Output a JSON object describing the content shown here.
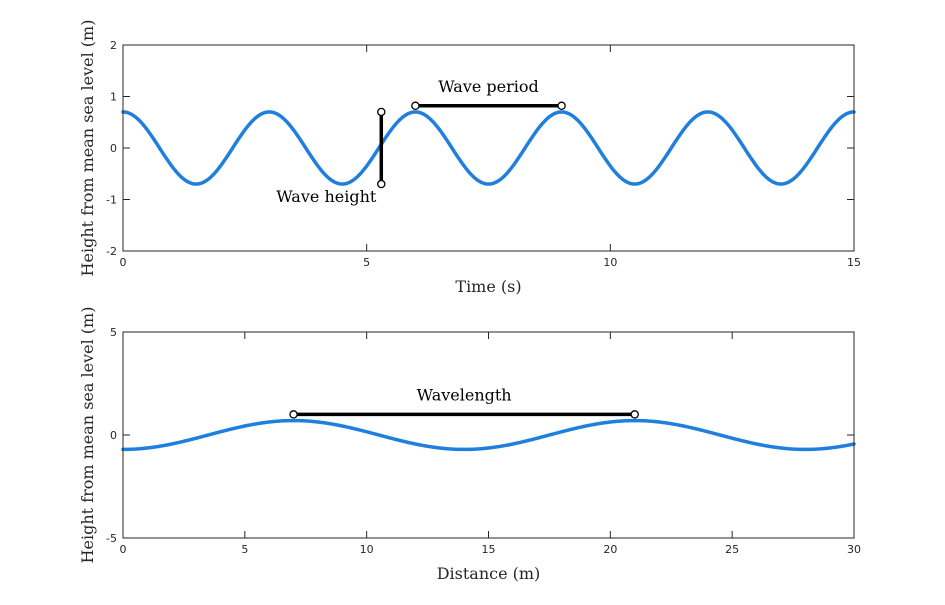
{
  "chart_data": [
    {
      "type": "line",
      "title": "",
      "xlabel": "Time (s)",
      "ylabel": "Height from mean sea level (m)",
      "xlim": [
        0,
        15
      ],
      "ylim": [
        -2,
        2
      ],
      "xticks": [
        0,
        5,
        10,
        15
      ],
      "yticks": [
        -2,
        -1,
        0,
        1,
        2
      ],
      "grid": false,
      "curve": {
        "function": "cosine",
        "amplitude": 0.7,
        "period": 3,
        "phase_shift": 0,
        "color": "#1f7fde"
      },
      "annotations": [
        {
          "label": "Wave height",
          "x1": 5.3,
          "y1": -0.7,
          "x2": 5.3,
          "y2": 0.7
        },
        {
          "label": "Wave period",
          "x1": 6,
          "y1": 0.82,
          "x2": 9,
          "y2": 0.82
        }
      ]
    },
    {
      "type": "line",
      "title": "",
      "xlabel": "Distance (m)",
      "ylabel": "Height from mean sea level (m)",
      "xlim": [
        0,
        30
      ],
      "ylim": [
        -5,
        5
      ],
      "xticks": [
        0,
        5,
        10,
        15,
        20,
        25,
        30
      ],
      "yticks": [
        -5,
        0,
        5
      ],
      "grid": false,
      "curve": {
        "function": "cosine",
        "amplitude": 0.7,
        "period": 14,
        "phase_shift": 7,
        "color": "#1f7fde"
      },
      "annotations": [
        {
          "label": "Wavelength",
          "x1": 7,
          "y1": 1,
          "x2": 21,
          "y2": 1
        }
      ]
    }
  ]
}
